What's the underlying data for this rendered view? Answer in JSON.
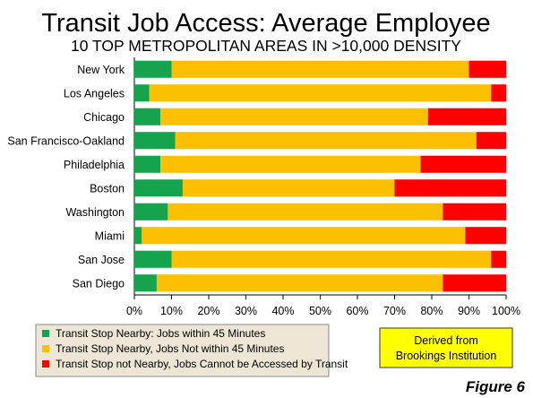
{
  "chart_data": {
    "type": "bar",
    "orientation": "horizontal",
    "stacked": true,
    "title": "Transit Job Access: Average Employee",
    "subtitle": "10 TOP METROPOLITAN AREAS IN >10,000 DENSITY",
    "categories": [
      "New York",
      "Los Angeles",
      "Chicago",
      "San Francisco-Oakland",
      "Philadelphia",
      "Boston",
      "Washington",
      "Miami",
      "San Jose",
      "San Diego"
    ],
    "series": [
      {
        "name": "Transit Stop Nearby: Jobs within 45 Minutes",
        "color": "#16a34e",
        "values": [
          10,
          4,
          7,
          11,
          7,
          13,
          9,
          2,
          10,
          6
        ]
      },
      {
        "name": "Transit Stop Nearby, Jobs Not within 45 Minutes",
        "color": "#fcc000",
        "values": [
          80,
          92,
          72,
          81,
          70,
          57,
          74,
          87,
          86,
          77
        ]
      },
      {
        "name": "Transit Stop not Nearby, Jobs Cannot be Accessed by Transit",
        "color": "#ff0000",
        "values": [
          10,
          4,
          21,
          8,
          23,
          30,
          17,
          11,
          4,
          17
        ]
      }
    ],
    "xlim": [
      0,
      100
    ],
    "xticks": [
      "0%",
      "10%",
      "20%",
      "30%",
      "40%",
      "50%",
      "60%",
      "70%",
      "80%",
      "90%",
      "100%"
    ],
    "grid": false,
    "legend_position": "bottom-left",
    "source_note": [
      "Derived from",
      "Brookings Institution"
    ],
    "figure_label": "Figure 6"
  }
}
